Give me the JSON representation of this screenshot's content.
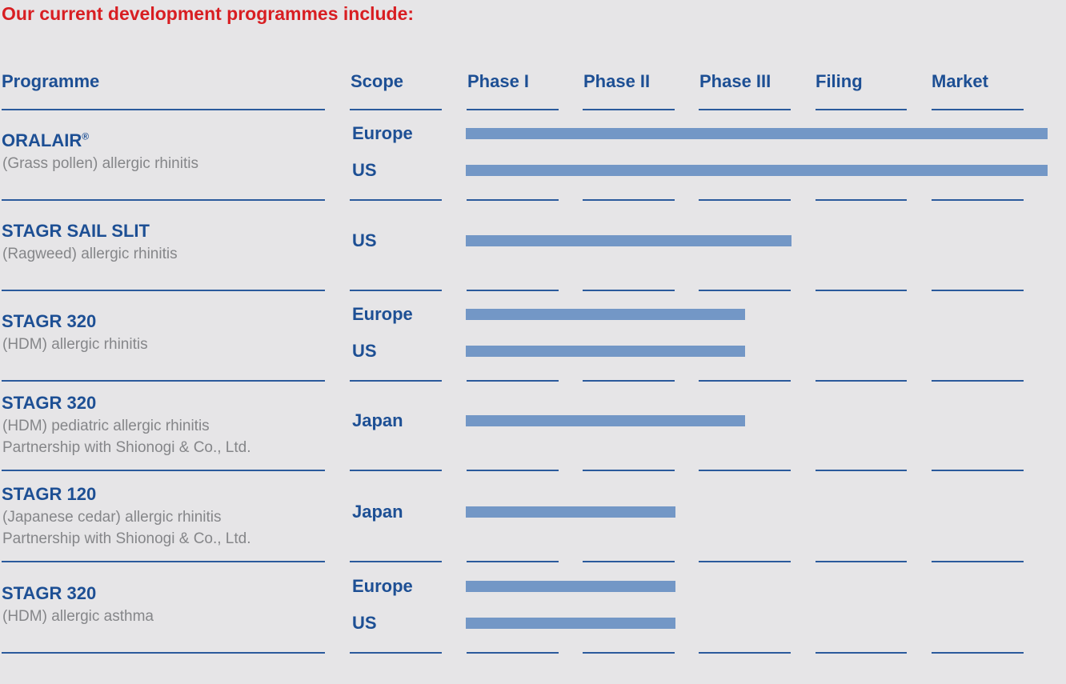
{
  "headline": "Our current development programmes include:",
  "columns": {
    "programme": "Programme",
    "scope": "Scope",
    "phases": [
      "Phase I",
      "Phase II",
      "Phase III",
      "Filing",
      "Market"
    ]
  },
  "colors": {
    "bar": "#7397c6",
    "rule": "#2b5a9c",
    "headline": "#d81e22",
    "text": "#1d4f94"
  },
  "chart_data": {
    "type": "bar",
    "orientation": "horizontal",
    "stage_axis": [
      "Phase I",
      "Phase II",
      "Phase III",
      "Filing",
      "Market"
    ],
    "stage_range": [
      0,
      5
    ],
    "programmes": [
      {
        "name": "ORALAIR",
        "mark": "®",
        "desc": [
          "(Grass pollen) allergic rhinitis"
        ],
        "scopes": [
          {
            "label": "Europe",
            "progress": 5.0
          },
          {
            "label": "US",
            "progress": 5.0
          }
        ]
      },
      {
        "name": "STAGR SAIL SLIT",
        "desc": [
          "(Ragweed) allergic rhinitis"
        ],
        "scopes": [
          {
            "label": "US",
            "progress": 2.8
          }
        ]
      },
      {
        "name": "STAGR 320",
        "desc": [
          "(HDM) allergic rhinitis"
        ],
        "scopes": [
          {
            "label": "Europe",
            "progress": 2.4
          },
          {
            "label": "US",
            "progress": 2.4
          }
        ]
      },
      {
        "name": "STAGR 320",
        "desc": [
          "(HDM) pediatric allergic rhinitis",
          "Partnership with Shionogi & Co., Ltd."
        ],
        "scopes": [
          {
            "label": "Japan",
            "progress": 2.4
          }
        ]
      },
      {
        "name": "STAGR 120",
        "desc": [
          "(Japanese cedar) allergic rhinitis",
          "Partnership with Shionogi & Co., Ltd."
        ],
        "scopes": [
          {
            "label": "Japan",
            "progress": 1.8
          }
        ]
      },
      {
        "name": "STAGR 320",
        "desc": [
          "(HDM) allergic asthma"
        ],
        "scopes": [
          {
            "label": "Europe",
            "progress": 1.8
          },
          {
            "label": "US",
            "progress": 1.8
          }
        ]
      }
    ]
  }
}
